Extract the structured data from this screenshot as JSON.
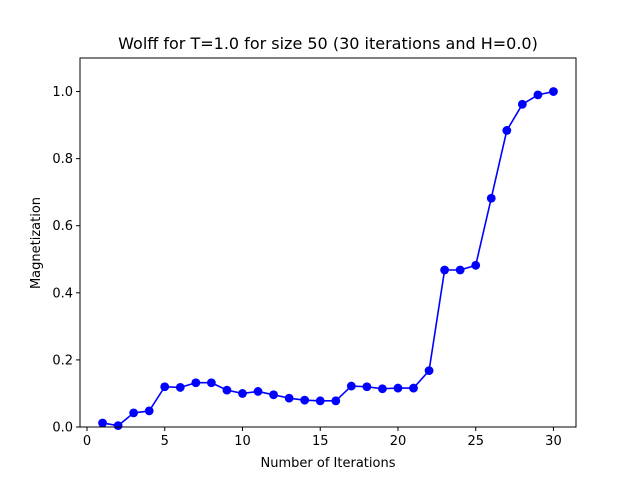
{
  "chart_data": {
    "type": "line",
    "title": "Wolff for T=1.0 for size 50 (30 iterations and H=0.0)",
    "xlabel": "Number of Iterations",
    "ylabel": "Magnetization",
    "xlim": [
      -0.45,
      31.45
    ],
    "ylim": [
      0.0,
      1.1
    ],
    "xticks": [
      0,
      5,
      10,
      15,
      20,
      25,
      30
    ],
    "xtick_labels": [
      "0",
      "5",
      "10",
      "15",
      "20",
      "25",
      "30"
    ],
    "yticks": [
      0.0,
      0.2,
      0.4,
      0.6,
      0.8,
      1.0
    ],
    "ytick_labels": [
      "0.0",
      "0.2",
      "0.4",
      "0.6",
      "0.8",
      "1.0"
    ],
    "grid": false,
    "legend": "none",
    "colors": {
      "series": "#0000ff",
      "axes": "#000000",
      "background": "#ffffff"
    },
    "series": [
      {
        "x": [
          1,
          2,
          3,
          4,
          5,
          6,
          7,
          8,
          9,
          10,
          11,
          12,
          13,
          14,
          15,
          16,
          17,
          18,
          19,
          20,
          21,
          22,
          23,
          24,
          25,
          26,
          27,
          28,
          29,
          30
        ],
        "values": [
          0.012,
          0.004,
          0.042,
          0.048,
          0.12,
          0.118,
          0.132,
          0.132,
          0.11,
          0.1,
          0.106,
          0.096,
          0.086,
          0.08,
          0.078,
          0.078,
          0.122,
          0.12,
          0.114,
          0.116,
          0.116,
          0.168,
          0.468,
          0.468,
          0.482,
          0.682,
          0.884,
          0.962,
          0.99,
          1.0
        ]
      }
    ]
  }
}
